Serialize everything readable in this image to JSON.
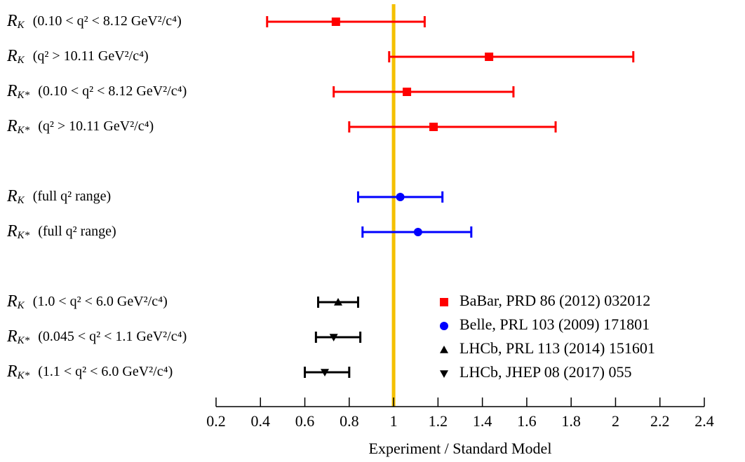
{
  "chart_data": {
    "type": "errorbar",
    "symbol": "R",
    "category_symbols": [
      "K",
      "K",
      "K*",
      "K*",
      "K",
      "K*",
      "K",
      "K*",
      "K*"
    ],
    "categories": [
      "(0.10 < q² < 8.12 GeV²/c⁴)",
      "(q² > 10.11 GeV²/c⁴)",
      "(0.10 < q² < 8.12 GeV²/c⁴)",
      "(q² > 10.11 GeV²/c⁴)",
      "(full q² range)",
      "(full q² range)",
      "(1.0 < q² < 6.0 GeV²/c⁴)",
      "(0.045 < q² < 1.1 GeV²/c⁴)",
      "(1.1 < q² < 6.0 GeV²/c⁴)"
    ],
    "series": [
      {
        "name": "BaBar,  PRD 86 (2012) 032012",
        "color": "#ff0000",
        "marker": "square",
        "values": [
          0.74,
          1.43,
          1.06,
          1.18,
          null,
          null,
          null,
          null,
          null
        ],
        "lower": [
          0.43,
          0.98,
          0.73,
          0.8,
          null,
          null,
          null,
          null,
          null
        ],
        "upper": [
          1.14,
          2.08,
          1.54,
          1.73,
          null,
          null,
          null,
          null,
          null
        ]
      },
      {
        "name": "Belle, PRL 103 (2009) 171801",
        "color": "#0000ff",
        "marker": "circle",
        "values": [
          null,
          null,
          null,
          null,
          1.03,
          1.11,
          null,
          null,
          null
        ],
        "lower": [
          null,
          null,
          null,
          null,
          0.84,
          0.86,
          null,
          null,
          null
        ],
        "upper": [
          null,
          null,
          null,
          null,
          1.22,
          1.35,
          null,
          null,
          null
        ]
      },
      {
        "name": "LHCb, PRL 113 (2014) 151601",
        "color": "#000000",
        "marker": "triangle-up",
        "values": [
          null,
          null,
          null,
          null,
          null,
          null,
          0.75,
          null,
          null
        ],
        "lower": [
          null,
          null,
          null,
          null,
          null,
          null,
          0.66,
          null,
          null
        ],
        "upper": [
          null,
          null,
          null,
          null,
          null,
          null,
          0.84,
          null,
          null
        ]
      },
      {
        "name": "LHCb, JHEP 08 (2017) 055",
        "color": "#000000",
        "marker": "triangle-down",
        "values": [
          null,
          null,
          null,
          null,
          null,
          null,
          null,
          0.73,
          0.69
        ],
        "lower": [
          null,
          null,
          null,
          null,
          null,
          null,
          null,
          0.65,
          0.6
        ],
        "upper": [
          null,
          null,
          null,
          null,
          null,
          null,
          null,
          0.85,
          0.8
        ]
      }
    ],
    "reference_line": 1,
    "reference_color": "#f5c000",
    "x_label": "Experiment / Standard Model",
    "xlim": [
      0.2,
      2.4
    ],
    "xticks": [
      0.2,
      0.4,
      0.6,
      0.8,
      1,
      1.2,
      1.4,
      1.6,
      1.8,
      2,
      2.2,
      2.4
    ],
    "legend": "lower right"
  }
}
